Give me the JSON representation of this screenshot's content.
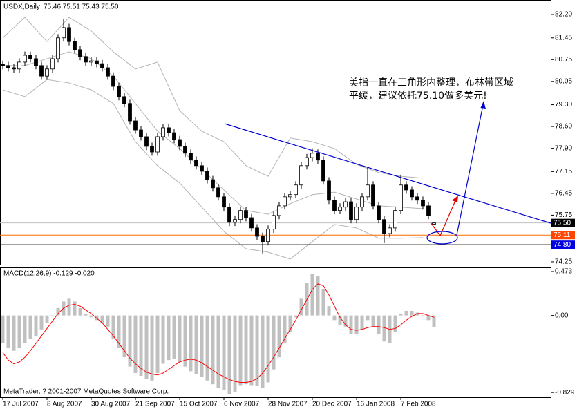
{
  "chart_data": [
    {
      "type": "candlestick",
      "title": "USDX,Daily",
      "subtitle": "75.46 75.51 75.43 75.50",
      "annotation": [
        "美指一直在三角形内整理，布林带区域",
        "平缓，建议依托75.10做多美元!"
      ],
      "open": [
        80.6,
        80.56,
        80.49,
        80.45,
        80.67,
        80.89,
        80.78,
        80.56,
        80.22,
        80.45,
        80.78,
        81.45,
        81.78,
        81.33,
        81.07,
        80.85,
        80.67,
        80.71,
        80.62,
        80.49,
        80.22,
        79.89,
        79.56,
        79.34,
        78.78,
        78.49,
        78.27,
        77.96,
        77.78,
        78.27,
        78.56,
        78.4,
        78.18,
        77.96,
        77.74,
        77.52,
        77.34,
        77.16,
        76.89,
        76.63,
        76.34,
        76.01,
        75.52,
        75.61,
        75.9,
        75.67,
        75.34,
        75.07,
        74.9,
        75.3,
        75.74,
        76.05,
        76.34,
        76.41,
        76.72,
        77.34,
        77.6,
        77.74,
        77.52,
        76.85,
        76.23,
        75.9,
        76.01,
        76.18,
        75.61,
        76.01,
        76.34,
        76.72,
        76.05,
        75.61,
        75.16,
        75.34,
        75.9,
        76.72,
        76.56,
        76.34,
        76.23,
        76.05,
        75.46
      ],
      "high": [
        80.72,
        80.68,
        80.61,
        80.79,
        81.01,
        81.01,
        80.9,
        80.68,
        80.57,
        80.9,
        81.57,
        82.05,
        81.9,
        81.45,
        81.19,
        80.97,
        80.83,
        80.83,
        80.74,
        80.61,
        80.34,
        80.01,
        79.68,
        79.46,
        78.9,
        78.61,
        78.39,
        78.08,
        78.39,
        78.68,
        78.68,
        78.52,
        78.3,
        78.08,
        77.86,
        77.64,
        77.46,
        77.28,
        77.01,
        76.75,
        76.46,
        76.13,
        75.73,
        76.02,
        76.02,
        75.79,
        75.46,
        75.19,
        75.42,
        75.86,
        76.17,
        76.46,
        76.53,
        76.84,
        77.46,
        77.72,
        77.9,
        77.86,
        77.64,
        76.97,
        76.35,
        76.13,
        76.3,
        76.3,
        76.13,
        76.46,
        77.3,
        76.84,
        76.17,
        75.73,
        75.46,
        76.02,
        77.05,
        76.84,
        76.68,
        76.46,
        76.35,
        76.17,
        75.51
      ],
      "low": [
        80.44,
        80.37,
        80.33,
        80.33,
        80.55,
        80.66,
        80.44,
        80.1,
        80.1,
        80.33,
        80.66,
        81.33,
        81.21,
        80.95,
        80.73,
        80.55,
        80.55,
        80.5,
        80.37,
        80.1,
        79.77,
        79.44,
        79.22,
        78.66,
        78.37,
        78.15,
        77.84,
        77.66,
        77.66,
        78.15,
        78.28,
        78.06,
        77.84,
        77.62,
        77.4,
        77.22,
        77.04,
        76.77,
        76.51,
        76.22,
        75.89,
        75.4,
        75.4,
        75.49,
        75.55,
        75.22,
        74.95,
        74.52,
        74.78,
        75.18,
        75.62,
        75.93,
        76.22,
        76.29,
        76.6,
        77.22,
        77.48,
        77.4,
        76.73,
        76.11,
        75.78,
        75.78,
        75.89,
        75.49,
        75.49,
        75.89,
        76.22,
        75.93,
        75.49,
        74.85,
        75.04,
        75.22,
        75.78,
        76.44,
        76.22,
        76.11,
        75.93,
        75.62,
        75.43
      ],
      "close": [
        80.56,
        80.49,
        80.45,
        80.67,
        80.89,
        80.78,
        80.56,
        80.22,
        80.45,
        80.78,
        81.45,
        81.78,
        81.33,
        81.07,
        80.85,
        80.67,
        80.71,
        80.62,
        80.49,
        80.22,
        79.89,
        79.56,
        79.34,
        78.78,
        78.49,
        78.27,
        77.96,
        77.78,
        78.27,
        78.56,
        78.4,
        78.18,
        77.96,
        77.74,
        77.52,
        77.34,
        77.16,
        76.89,
        76.63,
        76.34,
        76.01,
        75.52,
        75.61,
        75.9,
        75.67,
        75.34,
        75.07,
        74.9,
        75.3,
        75.74,
        76.05,
        76.34,
        76.41,
        76.72,
        77.34,
        77.6,
        77.74,
        77.52,
        76.85,
        76.23,
        75.9,
        76.01,
        76.18,
        75.61,
        76.01,
        76.34,
        76.72,
        76.05,
        75.61,
        75.16,
        75.34,
        75.9,
        76.72,
        76.56,
        76.34,
        76.23,
        76.05,
        75.74,
        75.5
      ],
      "up_color": "#ffffff",
      "down_color": "#000000",
      "bands": {
        "color": "#b4b4b4",
        "x": [
          0,
          4,
          8,
          12,
          16,
          20,
          24,
          28,
          32,
          36,
          40,
          44,
          48,
          52,
          56,
          60,
          64,
          68,
          72,
          76
        ],
        "upper": [
          81.45,
          82.11,
          81.33,
          82.11,
          81.67,
          81.0,
          80.45,
          80.67,
          79.11,
          78.45,
          78.11,
          77.34,
          77.0,
          78.23,
          78.11,
          77.89,
          77.38,
          77.12,
          77.0,
          76.94
        ],
        "middle": [
          80.56,
          80.56,
          80.78,
          81.0,
          80.78,
          80.22,
          79.34,
          78.45,
          77.89,
          77.23,
          76.56,
          75.9,
          75.78,
          76.12,
          76.41,
          76.49,
          76.27,
          76.05,
          76.01,
          75.96
        ],
        "lower": [
          79.78,
          79.56,
          80.11,
          80.0,
          79.78,
          79.34,
          78.11,
          77.34,
          76.78,
          76.01,
          75.23,
          74.67,
          74.56,
          74.34,
          74.9,
          75.45,
          75.34,
          75.01,
          75.01,
          75.03
        ]
      },
      "levels": [
        {
          "value": 75.5,
          "label": "75.50",
          "color": "#c0c0c0",
          "box": "#000000"
        },
        {
          "value": 75.11,
          "label": "75.11",
          "color": "#ff6a00",
          "box": "#ff4500"
        },
        {
          "value": 74.8,
          "label": "74.80",
          "color": "#000000",
          "box": "#0000e0"
        }
      ],
      "xlim": [
        -0.5,
        99.125
      ],
      "ylim": [
        74.16,
        82.6
      ],
      "yticks": [
        {
          "value": 82.2,
          "label": "82.20"
        },
        81.45,
        80.75,
        80.05,
        {
          "value": 79.3,
          "label": "79.30"
        },
        {
          "value": 78.6,
          "label": "78.60"
        },
        {
          "value": 77.9,
          "label": "77.90"
        },
        77.15,
        76.45,
        75.75,
        74.25
      ]
    },
    {
      "type": "macd",
      "title": "MACD(12,26,9) -0.129 -0.020",
      "footer": "MetaTrader, ? 2001-2007 MetaQuotes Software Corp.",
      "histogram": {
        "color": "#c0c0c0",
        "values": [
          -0.3,
          -0.35,
          -0.38,
          -0.35,
          -0.3,
          -0.25,
          -0.22,
          -0.15,
          -0.08,
          0.0,
          0.08,
          0.15,
          0.18,
          0.15,
          0.08,
          0.02,
          -0.02,
          -0.05,
          -0.08,
          -0.12,
          -0.25,
          -0.35,
          -0.45,
          -0.55,
          -0.62,
          -0.65,
          -0.68,
          -0.7,
          -0.62,
          -0.52,
          -0.48,
          -0.47,
          -0.5,
          -0.55,
          -0.6,
          -0.63,
          -0.66,
          -0.7,
          -0.74,
          -0.78,
          -0.8,
          -0.85,
          -0.82,
          -0.75,
          -0.74,
          -0.75,
          -0.76,
          -0.78,
          -0.72,
          -0.58,
          -0.45,
          -0.3,
          -0.18,
          -0.02,
          0.18,
          0.35,
          0.45,
          0.42,
          0.28,
          0.1,
          -0.05,
          -0.1,
          -0.12,
          -0.2,
          -0.2,
          -0.15,
          -0.05,
          -0.12,
          -0.2,
          -0.28,
          -0.3,
          -0.18,
          0.02,
          0.05,
          0.05,
          0.03,
          0.0,
          -0.05,
          -0.129
        ]
      },
      "signal": {
        "color": "#ff0000",
        "values": [
          -0.4,
          -0.48,
          -0.52,
          -0.5,
          -0.45,
          -0.38,
          -0.3,
          -0.22,
          -0.14,
          -0.06,
          0.02,
          0.08,
          0.11,
          0.12,
          0.1,
          0.06,
          0.02,
          -0.03,
          -0.08,
          -0.15,
          -0.22,
          -0.3,
          -0.38,
          -0.46,
          -0.52,
          -0.57,
          -0.61,
          -0.63,
          -0.64,
          -0.62,
          -0.58,
          -0.54,
          -0.5,
          -0.48,
          -0.47,
          -0.48,
          -0.51,
          -0.55,
          -0.59,
          -0.63,
          -0.66,
          -0.69,
          -0.71,
          -0.72,
          -0.72,
          -0.71,
          -0.68,
          -0.62,
          -0.54,
          -0.45,
          -0.35,
          -0.25,
          -0.15,
          -0.05,
          0.06,
          0.17,
          0.28,
          0.34,
          0.32,
          0.22,
          0.1,
          -0.02,
          -0.1,
          -0.15,
          -0.16,
          -0.15,
          -0.13,
          -0.12,
          -0.12,
          -0.13,
          -0.15,
          -0.14,
          -0.1,
          -0.05,
          -0.01,
          0.02,
          0.02,
          0.0,
          -0.02
        ]
      },
      "xlim": [
        -0.5,
        99.125
      ],
      "ylim": [
        -0.88,
        0.51
      ],
      "yticks": [
        0.473,
        {
          "value": 0,
          "label": "0.00"
        },
        -0.829
      ],
      "xticks": [
        {
          "value": 0,
          "label": "17 Jul 2007"
        },
        {
          "value": 8,
          "label": "8 Aug 2007"
        },
        {
          "value": 16,
          "label": "30 Aug 2007"
        },
        {
          "value": 24,
          "label": "21 Sep 2007"
        },
        {
          "value": 32,
          "label": "15 Oct 2007"
        },
        {
          "value": 40,
          "label": "6 Nov 2007"
        },
        {
          "value": 48,
          "label": "28 Nov 2007"
        },
        {
          "value": 56,
          "label": "20 Dec 2007"
        },
        {
          "value": 64,
          "label": "16 Jan 2008"
        },
        {
          "value": 72,
          "label": "7 Feb 2008"
        }
      ]
    }
  ]
}
